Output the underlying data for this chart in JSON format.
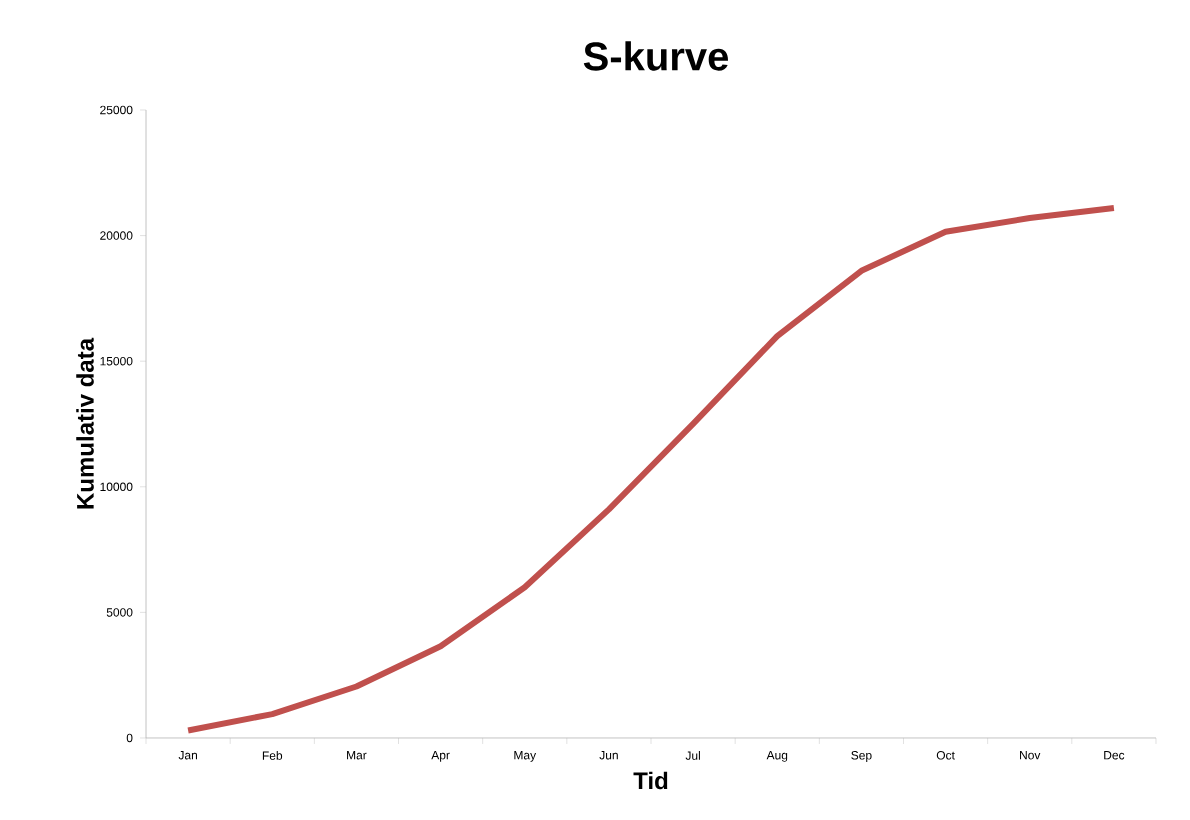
{
  "chart_data": {
    "type": "line",
    "title": "S-kurve",
    "xlabel": "Tid",
    "ylabel": "Kumulativ data",
    "categories": [
      "Jan",
      "Feb",
      "Mar",
      "Apr",
      "May",
      "Jun",
      "Jul",
      "Aug",
      "Sep",
      "Oct",
      "Nov",
      "Dec"
    ],
    "values": [
      300,
      950,
      2050,
      3650,
      6000,
      9100,
      12500,
      16000,
      18600,
      20150,
      20700,
      21100
    ],
    "color": "#c0504d",
    "ylim": [
      0,
      25000
    ],
    "yticks": [
      0,
      5000,
      10000,
      15000,
      20000,
      25000
    ],
    "grid": false,
    "marker": "none",
    "line_style": "solid"
  }
}
